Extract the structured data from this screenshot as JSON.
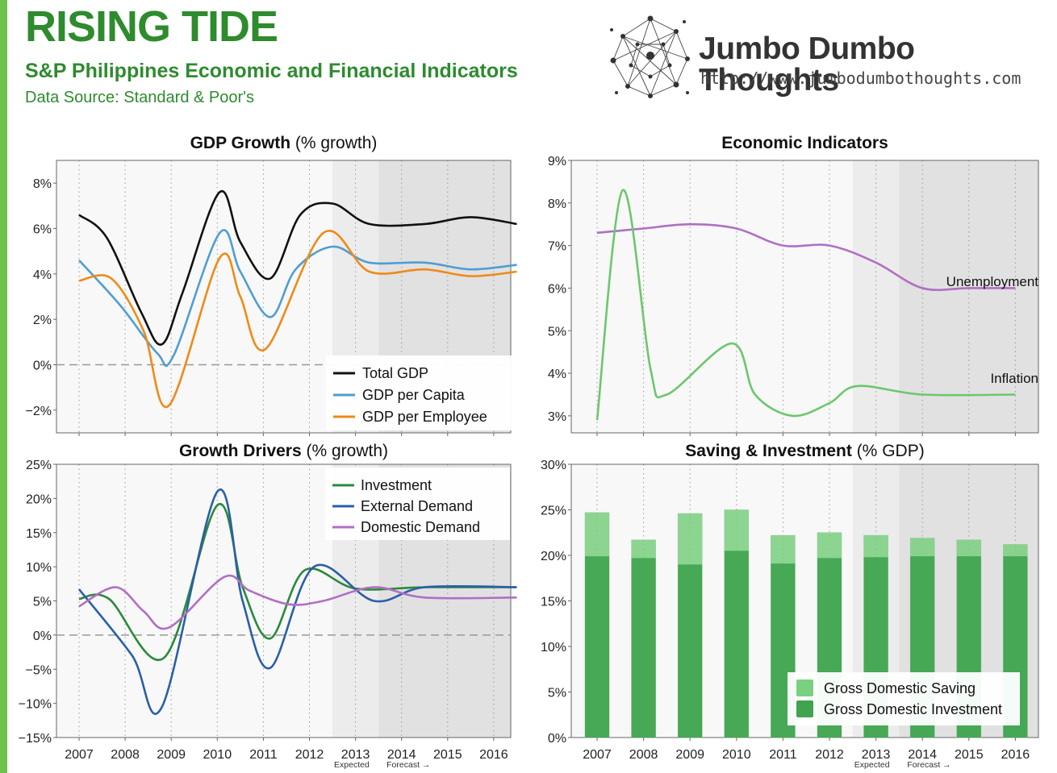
{
  "header": {
    "title": "RISING TIDE",
    "subtitle": "S&P Philippines Economic and Financial Indicators",
    "source": "Data Source: Standard & Poor's",
    "accent_color": "#2e8b2e",
    "bar_color": "#6cc24a"
  },
  "brand": {
    "name": "Jumbo Dumbo Thoughts",
    "url": "http://www.jumbodumbothoughts.com",
    "logo_icon": "network-logo-icon"
  },
  "chart_data": [
    {
      "type": "line",
      "title": "GDP Growth",
      "title_suffix": " (% growth)",
      "categories": [
        "2007",
        "2008",
        "2009",
        "2010",
        "2011",
        "2012",
        "2013",
        "2014",
        "2015",
        "2016"
      ],
      "ylim": [
        -3,
        9
      ],
      "yticks": [
        -2,
        0,
        2,
        4,
        6,
        8
      ],
      "ytick_labels": [
        "−2%",
        "0%",
        "2%",
        "4%",
        "6%",
        "8%"
      ],
      "zero_line": true,
      "shade": [
        {
          "x_from": 5.5,
          "x_to": 6.5,
          "label": "Expected"
        },
        {
          "x_from": 6.5,
          "x_to": 9.5,
          "label": "Forecast →"
        }
      ],
      "series": [
        {
          "name": "Total GDP",
          "color": "#111111",
          "points": [
            [
              0,
              6.6
            ],
            [
              0.6,
              5.6
            ],
            [
              1.35,
              2.3
            ],
            [
              1.8,
              0.9
            ],
            [
              2.25,
              3.2
            ],
            [
              3.05,
              7.6
            ],
            [
              3.5,
              5.4
            ],
            [
              4.15,
              3.8
            ],
            [
              4.8,
              6.6
            ],
            [
              5.5,
              7.1
            ],
            [
              6.3,
              6.2
            ],
            [
              7.5,
              6.2
            ],
            [
              8.5,
              6.5
            ],
            [
              9.5,
              6.2
            ]
          ]
        },
        {
          "name": "GDP per Capita",
          "color": "#4f9ed1",
          "points": [
            [
              0,
              4.6
            ],
            [
              0.9,
              2.6
            ],
            [
              1.7,
              0.5
            ],
            [
              2.05,
              0.4
            ],
            [
              3.05,
              5.8
            ],
            [
              3.5,
              4.1
            ],
            [
              4.15,
              2.1
            ],
            [
              4.7,
              4.2
            ],
            [
              5.5,
              5.2
            ],
            [
              6.3,
              4.5
            ],
            [
              7.5,
              4.5
            ],
            [
              8.5,
              4.2
            ],
            [
              9.5,
              4.4
            ]
          ]
        },
        {
          "name": "GDP per Employee",
          "color": "#ef8a17",
          "points": [
            [
              0,
              3.7
            ],
            [
              0.7,
              3.8
            ],
            [
              1.4,
              1.5
            ],
            [
              1.95,
              -1.8
            ],
            [
              3.05,
              4.7
            ],
            [
              3.5,
              3.0
            ],
            [
              4.05,
              0.7
            ],
            [
              5.3,
              5.8
            ],
            [
              6.3,
              4.1
            ],
            [
              7.5,
              4.2
            ],
            [
              8.5,
              3.9
            ],
            [
              9.5,
              4.1
            ]
          ]
        }
      ],
      "legend": "bottom-right"
    },
    {
      "type": "line",
      "title": "Economic Indicators",
      "title_suffix": "",
      "categories": [
        "2007",
        "2008",
        "2009",
        "2010",
        "2011",
        "2012",
        "2013",
        "2014",
        "2015",
        "2016"
      ],
      "ylim": [
        2.6,
        9
      ],
      "yticks": [
        3,
        4,
        5,
        6,
        7,
        8,
        9
      ],
      "ytick_labels": [
        "3%",
        "4%",
        "5%",
        "6%",
        "7%",
        "8%",
        "9%"
      ],
      "shade": [
        {
          "x_from": 5.5,
          "x_to": 6.5,
          "label": "Expected"
        },
        {
          "x_from": 6.5,
          "x_to": 9.5,
          "label": "Forecast →"
        }
      ],
      "series": [
        {
          "name": "Unemployment",
          "color": "#b06fc4",
          "points": [
            [
              0,
              7.3
            ],
            [
              1,
              7.4
            ],
            [
              2,
              7.5
            ],
            [
              3,
              7.4
            ],
            [
              4,
              7.0
            ],
            [
              5,
              7.0
            ],
            [
              6,
              6.6
            ],
            [
              7,
              6.0
            ],
            [
              8,
              6.0
            ],
            [
              9,
              6.0
            ]
          ]
        },
        {
          "name": "Inflation",
          "color": "#6cc76c",
          "points": [
            [
              0,
              2.9
            ],
            [
              0.55,
              8.3
            ],
            [
              1.15,
              4.1
            ],
            [
              1.5,
              3.5
            ],
            [
              2.9,
              4.7
            ],
            [
              3.4,
              3.5
            ],
            [
              4.2,
              3.0
            ],
            [
              5.0,
              3.3
            ],
            [
              5.6,
              3.7
            ],
            [
              7,
              3.5
            ],
            [
              9,
              3.5
            ]
          ]
        }
      ],
      "labels": [
        "Unemployment",
        "Inflation"
      ]
    },
    {
      "type": "line",
      "title": "Growth Drivers",
      "title_suffix": " (% growth)",
      "categories": [
        "2007",
        "2008",
        "2009",
        "2010",
        "2011",
        "2012",
        "2013",
        "2014",
        "2015",
        "2016"
      ],
      "ylim": [
        -15,
        25
      ],
      "yticks": [
        -15,
        -10,
        -5,
        0,
        5,
        10,
        15,
        20,
        25
      ],
      "ytick_labels": [
        "−15%",
        "−10%",
        "−5%",
        "0%",
        "5%",
        "10%",
        "15%",
        "20%",
        "25%"
      ],
      "zero_line": true,
      "shade": [
        {
          "x_from": 5.5,
          "x_to": 6.5,
          "label": "Expected"
        },
        {
          "x_from": 6.5,
          "x_to": 9.5,
          "label": "Forecast →"
        }
      ],
      "series": [
        {
          "name": "Investment",
          "color": "#2a8a3a",
          "points": [
            [
              0,
              5.3
            ],
            [
              0.65,
              5.3
            ],
            [
              1.85,
              -3.3
            ],
            [
              3.0,
              19.0
            ],
            [
              3.55,
              7.0
            ],
            [
              4.15,
              -0.5
            ],
            [
              4.9,
              9.5
            ],
            [
              6.0,
              6.8
            ],
            [
              7.5,
              7.0
            ],
            [
              9.5,
              7.0
            ]
          ]
        },
        {
          "name": "External Demand",
          "color": "#2b5ea8",
          "points": [
            [
              0,
              6.7
            ],
            [
              1.15,
              -3.0
            ],
            [
              1.8,
              -10.5
            ],
            [
              3.0,
              21.0
            ],
            [
              3.55,
              5.0
            ],
            [
              4.15,
              -4.8
            ],
            [
              5.1,
              10.0
            ],
            [
              6.4,
              5.0
            ],
            [
              7.5,
              7.0
            ],
            [
              9.5,
              7.0
            ]
          ]
        },
        {
          "name": "Domestic Demand",
          "color": "#b06fc4",
          "points": [
            [
              0,
              4.2
            ],
            [
              0.8,
              7.0
            ],
            [
              1.4,
              3.5
            ],
            [
              1.95,
              1.1
            ],
            [
              3.15,
              8.5
            ],
            [
              3.7,
              6.5
            ],
            [
              4.55,
              4.5
            ],
            [
              5.3,
              5.0
            ],
            [
              6.4,
              7.0
            ],
            [
              7.5,
              5.5
            ],
            [
              9.5,
              5.5
            ]
          ]
        }
      ],
      "legend": "top-right"
    },
    {
      "type": "bar",
      "title": "Saving & Investment",
      "title_suffix": " (% GDP)",
      "categories": [
        "2007",
        "2008",
        "2009",
        "2010",
        "2011",
        "2012",
        "2013",
        "2014",
        "2015",
        "2016"
      ],
      "ylim": [
        0,
        30
      ],
      "yticks": [
        0,
        5,
        10,
        15,
        20,
        25,
        30
      ],
      "ytick_labels": [
        "0%",
        "5%",
        "10%",
        "15%",
        "20%",
        "25%",
        "30%"
      ],
      "shade": [
        {
          "x_from": 5.5,
          "x_to": 6.5,
          "label": "Expected"
        },
        {
          "x_from": 6.5,
          "x_to": 9.5,
          "label": "Forecast →"
        }
      ],
      "series": [
        {
          "name": "Gross Domestic Saving",
          "color": "#79d07f",
          "values": [
            24.7,
            21.7,
            24.6,
            25.0,
            22.2,
            22.5,
            22.2,
            21.9,
            21.7,
            21.2
          ]
        },
        {
          "name": "Gross Domestic Investment",
          "color": "#3fa34f",
          "values": [
            19.9,
            19.7,
            19.0,
            20.5,
            19.1,
            19.7,
            19.8,
            19.9,
            19.9,
            19.9
          ]
        }
      ],
      "legend": "bottom-right"
    }
  ]
}
